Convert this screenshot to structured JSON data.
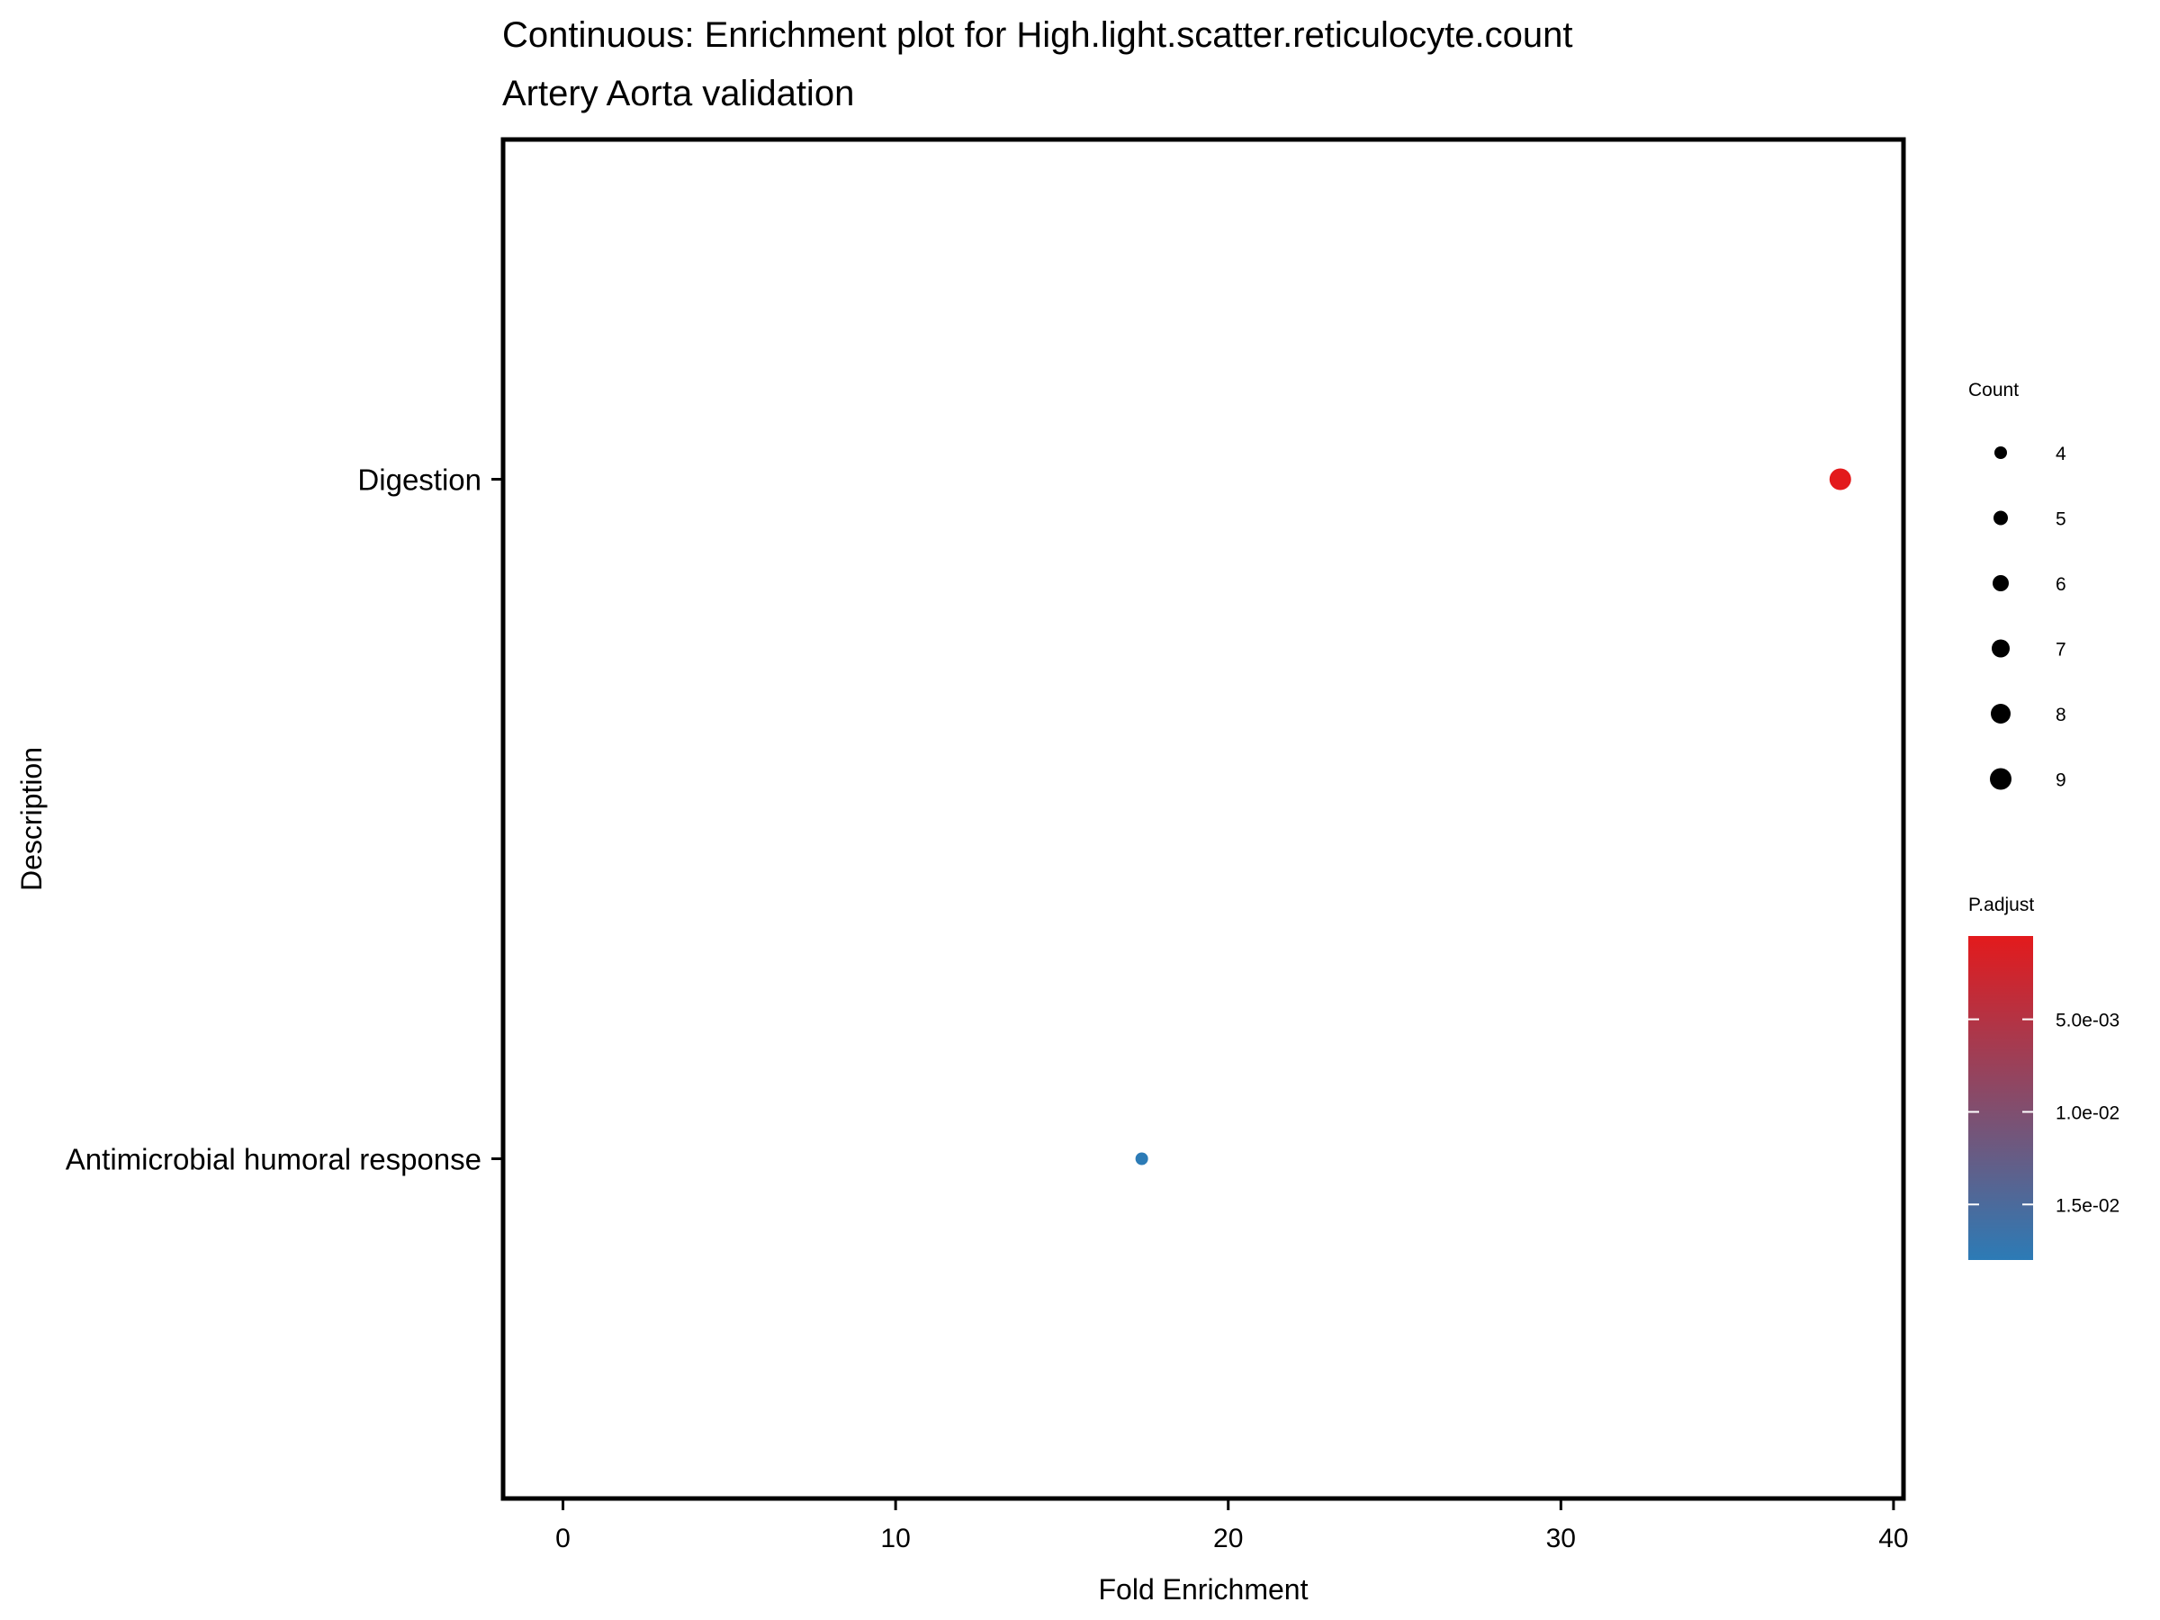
{
  "chart_data": {
    "type": "scatter",
    "title": "Continuous: Enrichment plot for High.light.scatter.reticulocyte.count",
    "subtitle": "Artery Aorta validation",
    "xlabel": "Fold Enrichment",
    "ylabel": "Description",
    "xlim": [
      -1.8,
      40.3
    ],
    "x_ticks": [
      0,
      10,
      20,
      30,
      40
    ],
    "categories": [
      "Antimicrobial humoral response",
      "Digestion"
    ],
    "points": [
      {
        "label": "Digestion",
        "x": 38.4,
        "count": 9,
        "p_adjust": 0.0005,
        "color": "#e31a1c"
      },
      {
        "label": "Antimicrobial humoral response",
        "x": 17.4,
        "count": 4,
        "p_adjust": 0.018,
        "color": "#2c7bb6"
      }
    ],
    "grid": false,
    "legend": {
      "placement": "right",
      "size": {
        "title": "Count",
        "values": [
          4,
          5,
          6,
          7,
          8,
          9
        ]
      },
      "color": {
        "title": "P.adjust",
        "ticks": [
          "5.0e-03",
          "1.0e-02",
          "1.5e-02"
        ],
        "tick_values": [
          0.005,
          0.01,
          0.015
        ],
        "range": [
          0.0005,
          0.018
        ],
        "low_color": "#e31a1c",
        "high_color": "#2c7bb6"
      }
    }
  }
}
